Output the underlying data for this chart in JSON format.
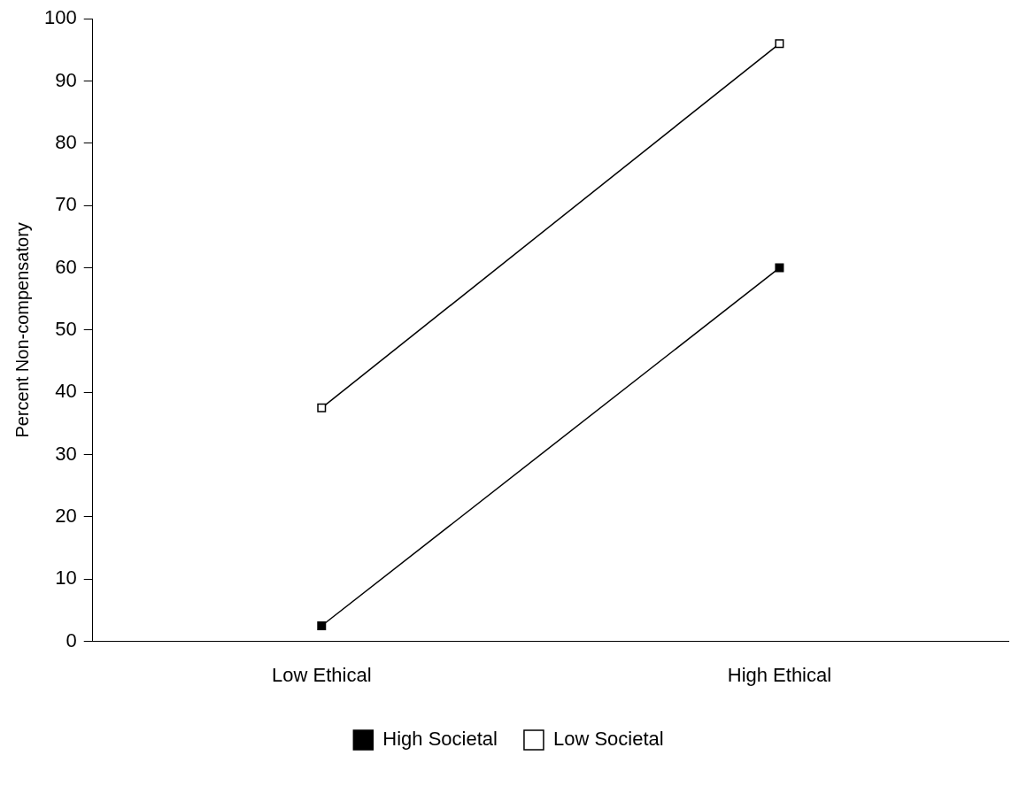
{
  "chart_data": {
    "type": "line",
    "ylabel": "Percent Non-compensatory",
    "categories": [
      "Low Ethical",
      "High Ethical"
    ],
    "series": [
      {
        "name": "High Societal",
        "color": "#000000",
        "values": [
          2.5,
          60
        ]
      },
      {
        "name": "Low Societal",
        "color": "#000000",
        "values": [
          37.5,
          96
        ]
      }
    ],
    "ylim": [
      0,
      100
    ],
    "yticks": [
      0,
      10,
      20,
      30,
      40,
      50,
      60,
      70,
      80,
      90,
      100
    ],
    "grid": false,
    "legend": "bottom",
    "marker": "square",
    "line_style": "solid"
  }
}
